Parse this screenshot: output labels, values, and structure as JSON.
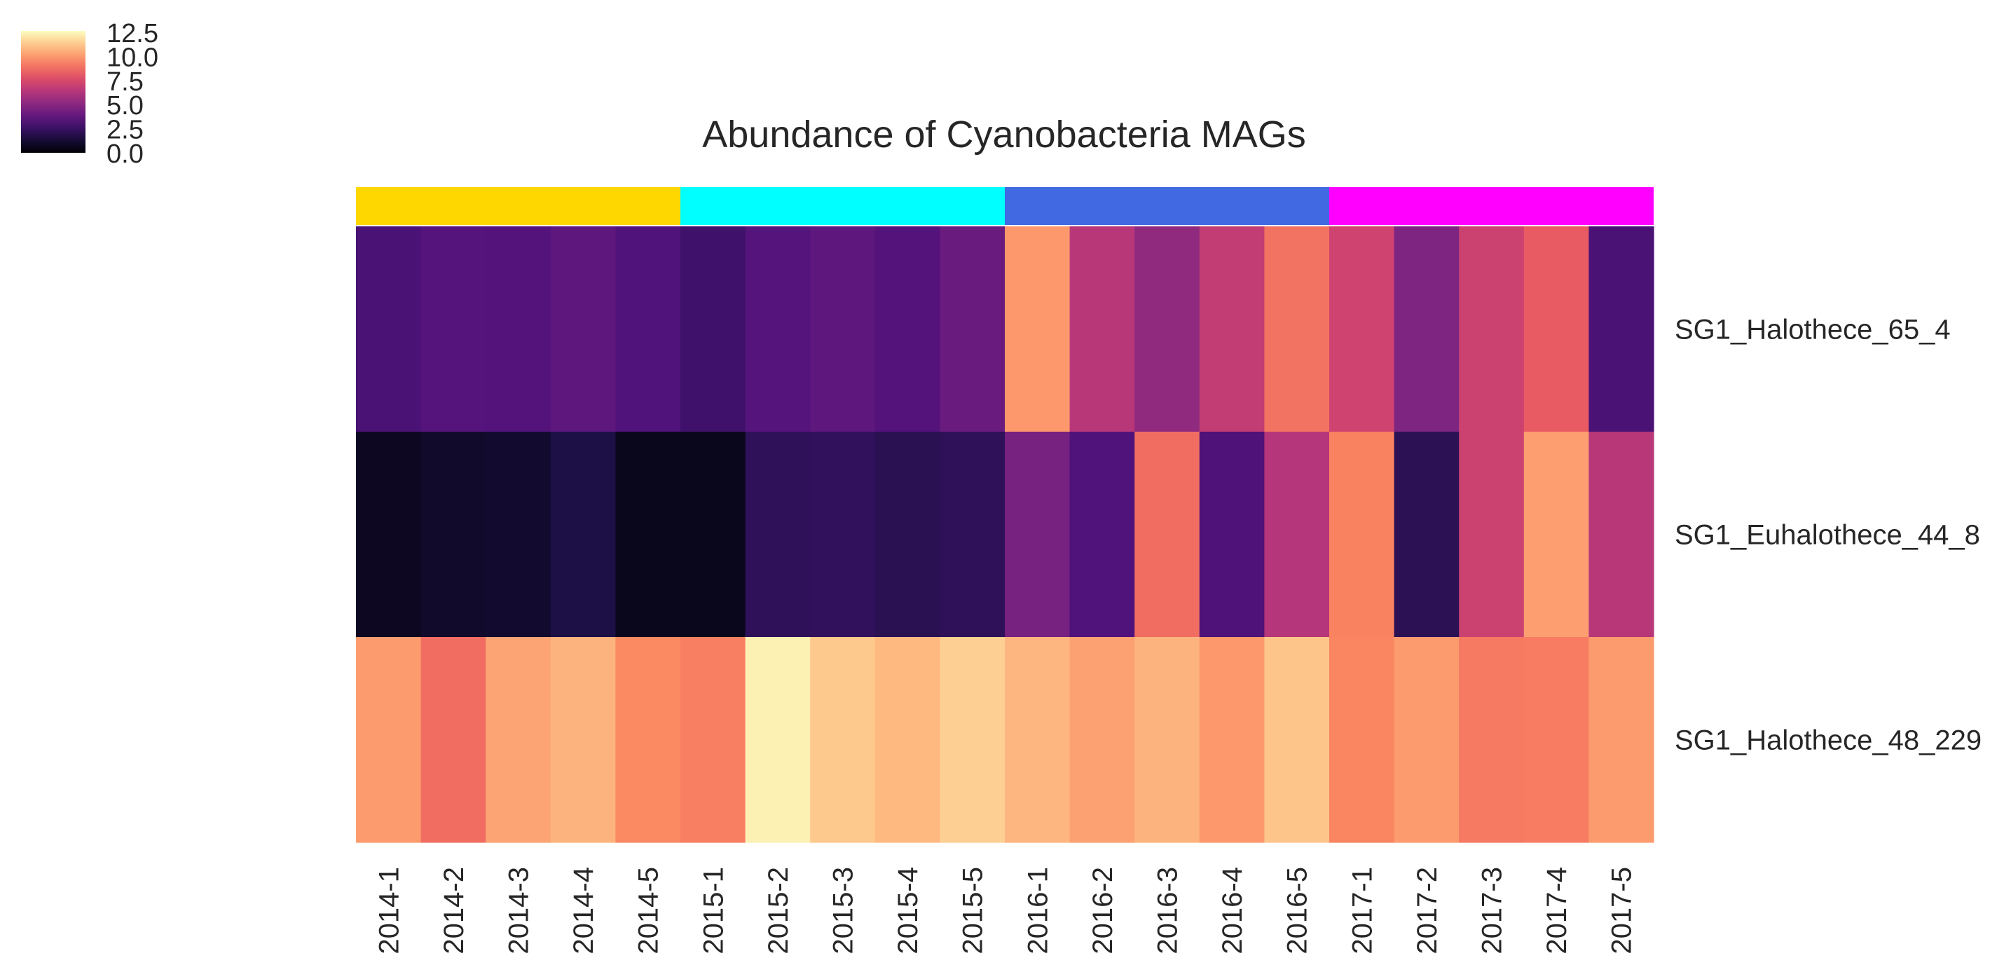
{
  "chart_data": {
    "type": "heatmap",
    "title": "Abundance of Cyanobacteria MAGs",
    "columns": [
      "2014-1",
      "2014-2",
      "2014-3",
      "2014-4",
      "2014-5",
      "2015-1",
      "2015-2",
      "2015-3",
      "2015-4",
      "2015-5",
      "2016-1",
      "2016-2",
      "2016-3",
      "2016-4",
      "2016-5",
      "2017-1",
      "2017-2",
      "2017-3",
      "2017-4",
      "2017-5"
    ],
    "rows": [
      "SG1_Halothece_65_4",
      "SG1_Euhalothece_44_8",
      "SG1_Halothece_48_229"
    ],
    "values": [
      [
        3.6,
        4.0,
        3.9,
        4.3,
        3.8,
        3.2,
        4.0,
        4.3,
        3.9,
        4.8,
        11.8,
        7.6,
        6.2,
        8.0,
        10.6,
        8.5,
        5.6,
        8.4,
        9.8,
        3.6
      ],
      [
        0.9,
        1.2,
        1.3,
        2.0,
        0.7,
        0.7,
        2.6,
        2.7,
        2.4,
        2.6,
        5.3,
        3.8,
        10.4,
        3.7,
        7.5,
        11.1,
        2.5,
        8.4,
        12.0,
        7.6
      ],
      [
        11.9,
        10.4,
        12.2,
        12.7,
        11.3,
        11.0,
        14.6,
        13.4,
        12.9,
        13.6,
        12.8,
        12.1,
        12.7,
        11.8,
        13.3,
        11.2,
        11.9,
        10.8,
        10.9,
        11.9
      ]
    ],
    "colormap": "magma",
    "colorbar": {
      "min": 0.0,
      "max": 12.5,
      "ticks": [
        "12.5",
        "10.0",
        "7.5",
        "5.0",
        "2.5",
        "0.0"
      ]
    },
    "column_groups": [
      {
        "year": "2014",
        "color": "#ffd700"
      },
      {
        "year": "2015",
        "color": "#00ffff"
      },
      {
        "year": "2016",
        "color": "#4169e1"
      },
      {
        "year": "2017",
        "color": "#ff00ff"
      }
    ],
    "grid": false,
    "legend_position": "top-left"
  }
}
